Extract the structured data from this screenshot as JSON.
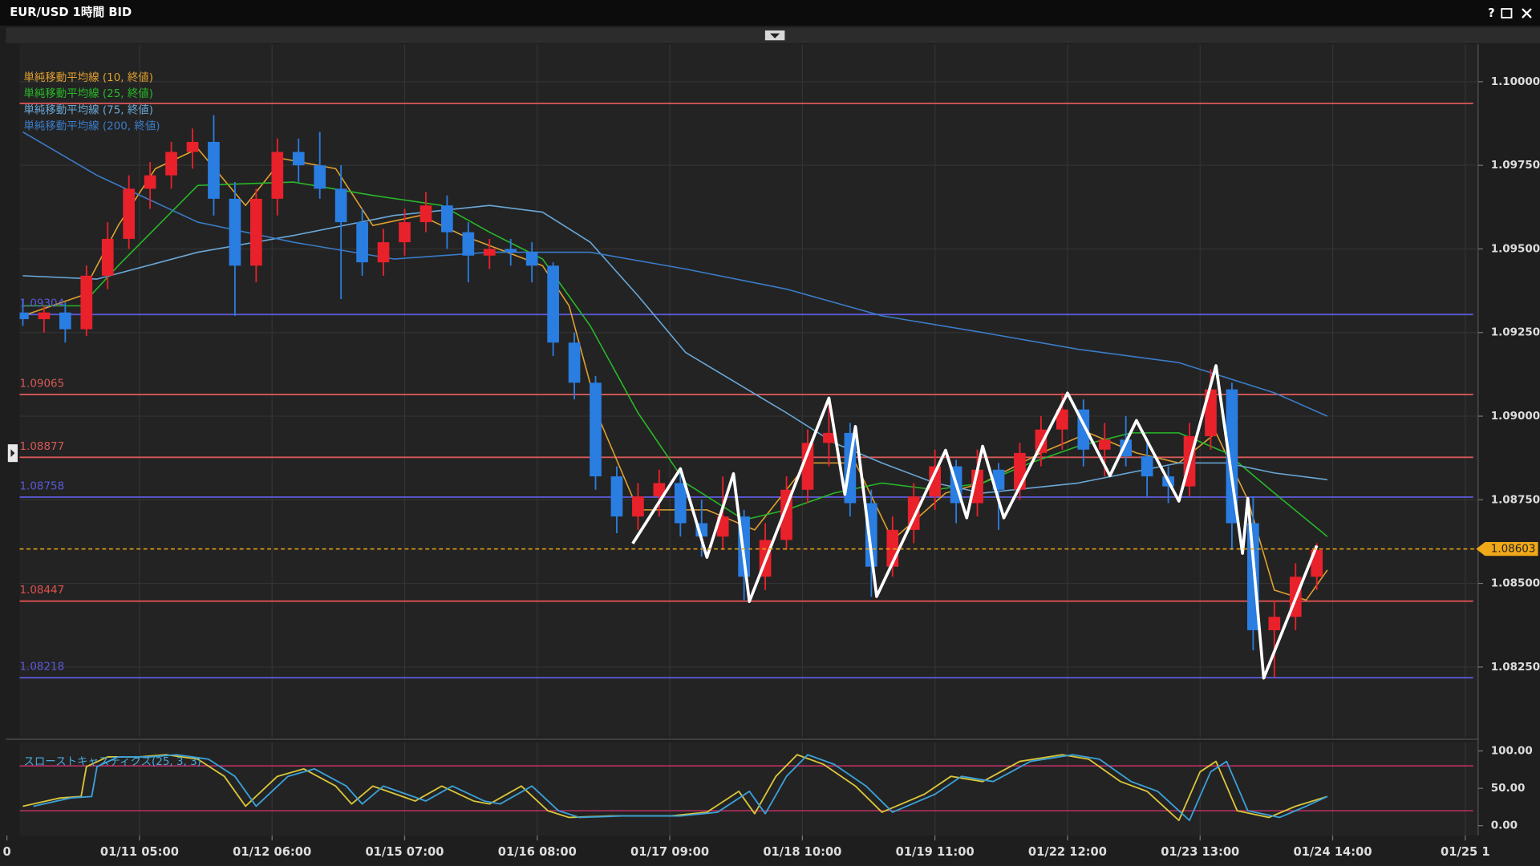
{
  "window": {
    "title": "EUR/USD 1時間 BID",
    "help": "?"
  },
  "chart_data": [
    {
      "type": "candlestick",
      "up_color": "#e8212b",
      "down_color": "#2a7de1",
      "xlim": [
        -0.6,
        273.5
      ],
      "xticks": [
        {
          "value": -3,
          "label": "0"
        },
        {
          "value": 22,
          "label": "01/11 05:00"
        },
        {
          "value": 47,
          "label": "01/12 06:00"
        },
        {
          "value": 72,
          "label": "01/15 07:00"
        },
        {
          "value": 97,
          "label": "01/16 08:00"
        },
        {
          "value": 122,
          "label": "01/17 09:00"
        },
        {
          "value": 147,
          "label": "01/18 10:00"
        },
        {
          "value": 172,
          "label": "01/19 11:00"
        },
        {
          "value": 197,
          "label": "01/22 12:00"
        },
        {
          "value": 222,
          "label": "01/23 13:00"
        },
        {
          "value": 247,
          "label": "01/24 14:00"
        },
        {
          "value": 272,
          "label": "01/25 1"
        }
      ],
      "ylim": [
        1.08046,
        1.10112
      ],
      "yticks": [
        {
          "value": 1.1,
          "label": "1.10000"
        },
        {
          "value": 1.0975,
          "label": "1.09750"
        },
        {
          "value": 1.095,
          "label": "1.09500"
        },
        {
          "value": 1.0925,
          "label": "1.09250"
        },
        {
          "value": 1.09,
          "label": "1.09000"
        },
        {
          "value": 1.0875,
          "label": "1.08750"
        },
        {
          "value": 1.085,
          "label": "1.08500"
        },
        {
          "value": 1.0825,
          "label": "1.08250"
        }
      ],
      "grid": true,
      "x": [
        0,
        4,
        8,
        12,
        16,
        20,
        24,
        28,
        32,
        36,
        40,
        44,
        48,
        52,
        56,
        60,
        64,
        68,
        72,
        76,
        80,
        84,
        88,
        92,
        96,
        100,
        104,
        108,
        112,
        116,
        120,
        124,
        128,
        132,
        136,
        140,
        144,
        148,
        152,
        156,
        160,
        164,
        168,
        172,
        176,
        180,
        184,
        188,
        192,
        196,
        200,
        204,
        208,
        212,
        216,
        220,
        224,
        228,
        232,
        236,
        240,
        244
      ],
      "open": [
        1.0931,
        1.0929,
        1.0931,
        1.0926,
        1.0942,
        1.0953,
        1.0968,
        1.0972,
        1.0979,
        1.0982,
        1.0965,
        1.0945,
        1.0965,
        1.0979,
        1.0975,
        1.0968,
        1.0958,
        1.0946,
        1.0952,
        1.0958,
        1.0963,
        1.0955,
        1.0948,
        1.095,
        1.0949,
        1.0945,
        1.0922,
        1.091,
        1.0882,
        1.087,
        1.0876,
        1.088,
        1.0868,
        1.0864,
        1.087,
        1.0852,
        1.0863,
        1.0878,
        1.0892,
        1.0895,
        1.0874,
        1.0855,
        1.0866,
        1.0876,
        1.0885,
        1.0874,
        1.0884,
        1.0878,
        1.0889,
        1.0896,
        1.0902,
        1.089,
        1.0893,
        1.0888,
        1.0882,
        1.0879,
        1.0894,
        1.0908,
        1.0868,
        1.0836,
        1.084,
        1.0852
      ],
      "high": [
        1.0935,
        1.0933,
        1.0934,
        1.0945,
        1.0958,
        1.0972,
        1.0976,
        1.0982,
        1.0986,
        1.099,
        1.097,
        1.0968,
        1.0983,
        1.0983,
        1.0985,
        1.0975,
        1.0962,
        1.0956,
        1.0962,
        1.0967,
        1.0966,
        1.0958,
        1.0953,
        1.0953,
        1.0952,
        1.0946,
        1.0925,
        1.0912,
        1.0885,
        1.088,
        1.0884,
        1.0884,
        1.0875,
        1.0882,
        1.0872,
        1.0868,
        1.0882,
        1.0896,
        1.0905,
        1.0898,
        1.0878,
        1.087,
        1.088,
        1.089,
        1.0887,
        1.089,
        1.0886,
        1.0892,
        1.09,
        1.0907,
        1.0905,
        1.0898,
        1.09,
        1.0892,
        1.0885,
        1.0898,
        1.0914,
        1.091,
        1.0876,
        1.0845,
        1.0856,
        1.0862
      ],
      "low": [
        1.0927,
        1.0925,
        1.0922,
        1.0924,
        1.0938,
        1.095,
        1.0962,
        1.0968,
        1.0974,
        1.096,
        1.093,
        1.094,
        1.096,
        1.097,
        1.0965,
        1.0935,
        1.0942,
        1.0942,
        1.0948,
        1.0955,
        1.095,
        1.094,
        1.0944,
        1.0945,
        1.094,
        1.0918,
        1.0905,
        1.0878,
        1.0865,
        1.0866,
        1.087,
        1.0864,
        1.0858,
        1.086,
        1.0845,
        1.0848,
        1.086,
        1.0874,
        1.0885,
        1.087,
        1.0846,
        1.0852,
        1.0862,
        1.0872,
        1.0868,
        1.087,
        1.0866,
        1.0875,
        1.0885,
        1.089,
        1.0885,
        1.0882,
        1.0885,
        1.0876,
        1.0874,
        1.0876,
        1.089,
        1.086,
        1.083,
        1.0822,
        1.0836,
        1.0848
      ],
      "close": [
        1.0929,
        1.0931,
        1.0926,
        1.0942,
        1.0953,
        1.0968,
        1.0972,
        1.0979,
        1.0982,
        1.0965,
        1.0945,
        1.0965,
        1.0979,
        1.0975,
        1.0968,
        1.0958,
        1.0946,
        1.0952,
        1.0958,
        1.0963,
        1.0955,
        1.0948,
        1.095,
        1.0949,
        1.0945,
        1.0922,
        1.091,
        1.0882,
        1.087,
        1.0876,
        1.088,
        1.0868,
        1.0864,
        1.087,
        1.0852,
        1.0863,
        1.0878,
        1.0892,
        1.0895,
        1.0874,
        1.0855,
        1.0866,
        1.0876,
        1.0885,
        1.0874,
        1.0884,
        1.0878,
        1.0889,
        1.0896,
        1.0902,
        1.089,
        1.0893,
        1.0888,
        1.0882,
        1.0879,
        1.0894,
        1.0908,
        1.0868,
        1.0836,
        1.084,
        1.0852,
        1.086
      ],
      "series": [
        {
          "name": "単純移動平均線 (10, 終値)",
          "color": "#e0a030",
          "x": [
            0,
            11,
            18,
            25,
            33,
            42,
            49,
            59,
            66,
            75,
            83,
            98,
            103,
            109,
            116,
            129,
            138,
            148,
            157,
            164,
            174,
            181,
            192,
            201,
            210,
            218,
            225,
            231,
            236,
            242,
            246
          ],
          "values": [
            1.093,
            1.0936,
            1.0957,
            1.0974,
            1.098,
            1.0963,
            1.0977,
            1.0974,
            1.0957,
            1.096,
            1.0954,
            1.0945,
            1.0933,
            1.0898,
            1.0872,
            1.0872,
            1.0866,
            1.0886,
            1.0886,
            1.0863,
            1.0877,
            1.088,
            1.0889,
            1.0895,
            1.0889,
            1.0886,
            1.0895,
            1.0875,
            1.0848,
            1.0845,
            1.0854
          ]
        },
        {
          "name": "単純移動平均線 (25, 終値)",
          "color": "#28b828",
          "x": [
            0,
            11,
            18,
            33,
            51,
            66,
            79,
            88,
            98,
            107,
            116,
            125,
            136,
            144,
            153,
            162,
            172,
            181,
            190,
            199,
            209,
            218,
            227,
            236,
            246
          ],
          "values": [
            1.0933,
            1.0933,
            1.0945,
            1.0969,
            1.097,
            1.0966,
            1.0963,
            1.0955,
            1.0947,
            1.0927,
            1.0901,
            1.088,
            1.0869,
            1.0872,
            1.0877,
            1.088,
            1.0878,
            1.088,
            1.0886,
            1.0891,
            1.0895,
            1.0895,
            1.0889,
            1.0877,
            1.0864
          ]
        },
        {
          "name": "単純移動平均線 (75, 終値)",
          "color": "#6aa8d8",
          "x": [
            0,
            14,
            33,
            51,
            70,
            88,
            98,
            107,
            116,
            125,
            144,
            153,
            162,
            172,
            181,
            199,
            218,
            227,
            236,
            246
          ],
          "values": [
            1.0942,
            1.0941,
            1.0949,
            1.0954,
            1.096,
            1.0963,
            1.0961,
            1.0952,
            1.0936,
            1.0919,
            1.0901,
            1.0892,
            1.0886,
            1.088,
            1.0877,
            1.088,
            1.0886,
            1.0886,
            1.0883,
            1.0881
          ]
        },
        {
          "name": "単純移動平均線 (200, 終値)",
          "color": "#3a7cc8",
          "x": [
            0,
            14,
            33,
            51,
            70,
            88,
            107,
            125,
            144,
            162,
            181,
            199,
            218,
            236,
            246
          ],
          "values": [
            1.0985,
            1.0972,
            1.0958,
            1.0952,
            1.0947,
            1.0949,
            1.0949,
            1.0944,
            1.0938,
            1.093,
            1.0925,
            1.092,
            1.0916,
            1.0907,
            1.09
          ]
        }
      ],
      "zigzag": {
        "color": "#ffffff",
        "x": [
          115,
          124,
          129,
          134,
          137,
          152,
          155,
          157,
          161,
          174,
          178,
          181,
          185,
          197,
          205,
          210,
          218,
          225,
          230,
          231,
          234,
          244
        ],
        "values": [
          1.08619,
          1.08843,
          1.08578,
          1.08828,
          1.08446,
          1.09054,
          1.08766,
          1.08969,
          1.08461,
          1.08898,
          1.08696,
          1.0891,
          1.08696,
          1.09069,
          1.08822,
          1.08987,
          1.08746,
          1.09151,
          1.0859,
          1.08754,
          1.08217,
          1.08613
        ]
      },
      "levels": [
        {
          "value": 1.09935,
          "color": "#e05a5a",
          "show_label": false
        },
        {
          "value": 1.09304,
          "color": "#5a5ad8"
        },
        {
          "value": 1.09065,
          "color": "#d85858"
        },
        {
          "value": 1.08877,
          "color": "#d85858"
        },
        {
          "value": 1.08758,
          "color": "#5a5ad8"
        },
        {
          "value": 1.08447,
          "color": "#e05050"
        },
        {
          "value": 1.08218,
          "color": "#5a5ad8"
        }
      ],
      "current_price": {
        "value": 1.08603,
        "color": "#f0a818"
      }
    },
    {
      "type": "line",
      "title": "スローストキャスティクス(25, 3, 3)",
      "xlim": [
        -0.6,
        273.5
      ],
      "ylim": [
        -13.2,
        111.8
      ],
      "yticks": [
        {
          "value": 100,
          "label": "100.00"
        },
        {
          "value": 50,
          "label": "50.00"
        },
        {
          "value": 0,
          "label": "0.00"
        }
      ],
      "levels": [
        80,
        20
      ],
      "level_color": "#c8306a",
      "series": [
        {
          "color": "#d9c53a",
          "x": [
            0,
            7,
            11,
            12,
            16,
            22,
            27,
            33,
            38,
            42,
            48,
            53,
            59,
            62,
            66,
            74,
            79,
            85,
            88,
            94,
            99,
            103,
            111,
            122,
            129,
            135,
            138,
            142,
            146,
            151,
            157,
            162,
            170,
            175,
            181,
            188,
            196,
            201,
            207,
            212,
            218,
            222,
            225,
            229,
            235,
            240,
            246
          ],
          "values": [
            26,
            37,
            39,
            79,
            92,
            92,
            95,
            89,
            66,
            26,
            66,
            76,
            53,
            29,
            53,
            33,
            53,
            33,
            29,
            53,
            20,
            11,
            13,
            13,
            18,
            46,
            16,
            66,
            95,
            82,
            53,
            18,
            42,
            66,
            59,
            86,
            95,
            89,
            59,
            46,
            7,
            72,
            86,
            20,
            11,
            26,
            39
          ]
        },
        {
          "color": "#3aa0d8",
          "x": [
            2,
            9,
            13,
            14,
            18,
            24,
            29,
            35,
            40,
            44,
            50,
            55,
            61,
            64,
            68,
            76,
            81,
            87,
            90,
            96,
            101,
            105,
            113,
            124,
            131,
            137,
            140,
            144,
            148,
            153,
            159,
            164,
            172,
            177,
            183,
            190,
            198,
            203,
            209,
            214,
            220,
            224,
            227,
            231,
            237,
            242,
            246
          ],
          "values": [
            26,
            37,
            39,
            79,
            92,
            92,
            95,
            89,
            66,
            26,
            66,
            76,
            53,
            29,
            53,
            33,
            53,
            33,
            29,
            53,
            20,
            11,
            13,
            13,
            18,
            46,
            16,
            66,
            95,
            82,
            53,
            18,
            42,
            66,
            59,
            86,
            95,
            89,
            59,
            46,
            7,
            72,
            86,
            20,
            11,
            26,
            39
          ]
        }
      ]
    }
  ]
}
